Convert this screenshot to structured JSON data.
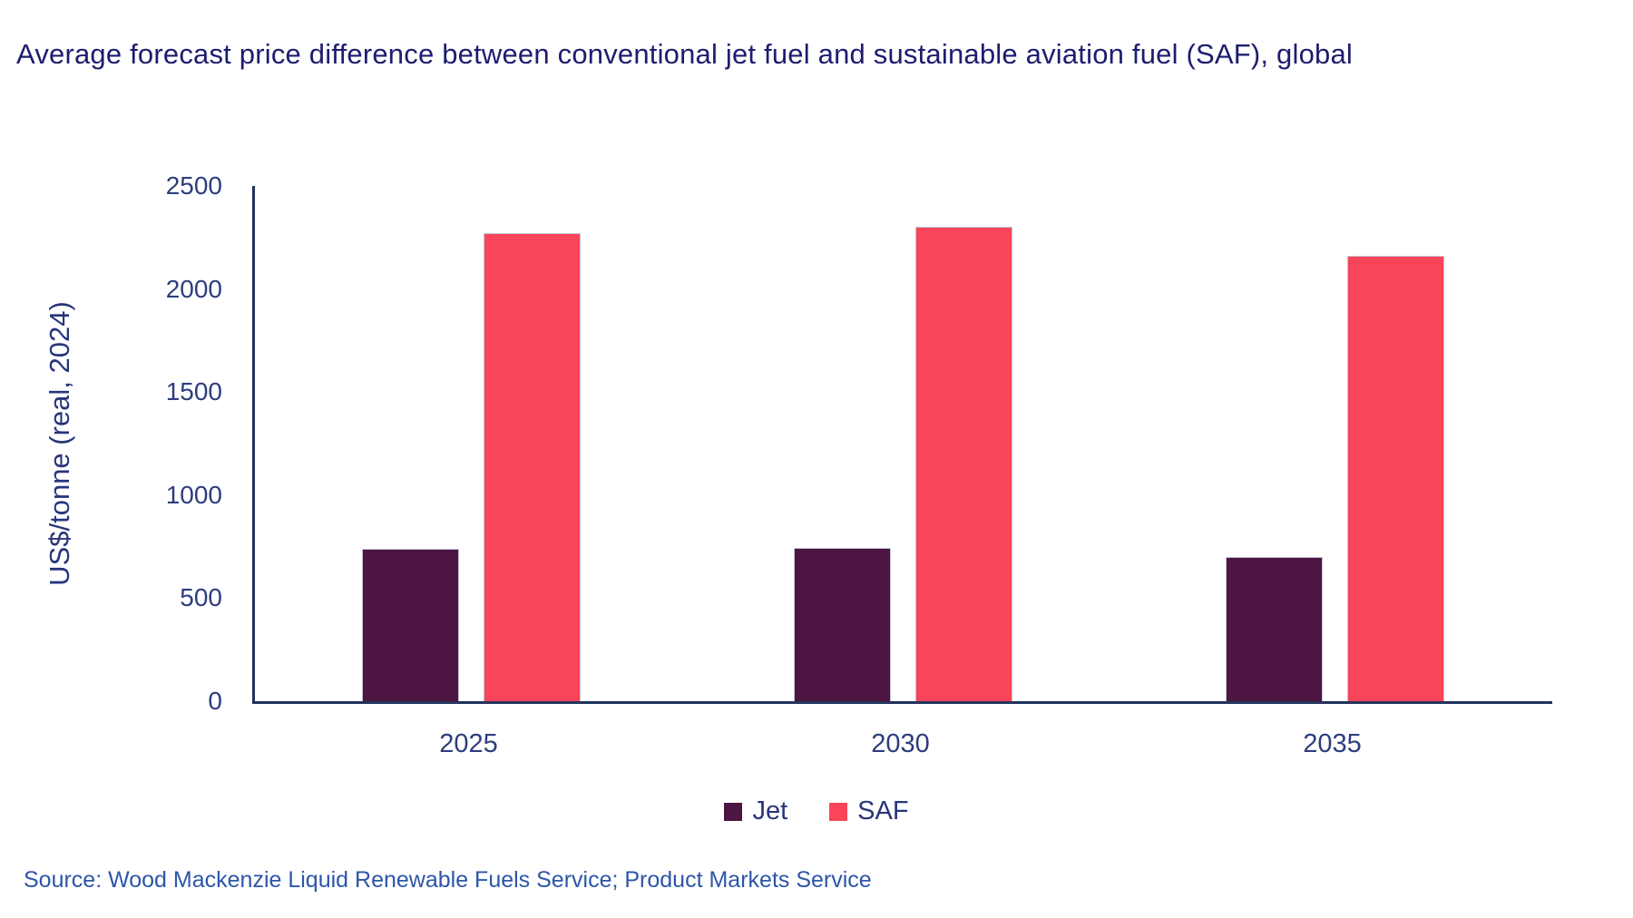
{
  "title": "Average forecast price difference between conventional jet fuel and sustainable aviation fuel (SAF), global",
  "source": "Source: Wood Mackenzie Liquid Renewable Fuels Service; Product Markets Service",
  "colors": {
    "jet": "#4d1541",
    "saf": "#f9455a",
    "axis": "#24335c",
    "title_text": "#1d1d70",
    "tick_text": "#2e3d7e",
    "source_text": "#2d56a8"
  },
  "chart_data": {
    "type": "bar",
    "title": "Average forecast price difference between conventional jet fuel and sustainable aviation fuel (SAF), global",
    "categories": [
      "2025",
      "2030",
      "2035"
    ],
    "series": [
      {
        "name": "Jet",
        "color": "#4d1541",
        "values": [
          740,
          745,
          700
        ]
      },
      {
        "name": "SAF",
        "color": "#f9455a",
        "values": [
          2270,
          2300,
          2160
        ]
      }
    ],
    "xlabel": "",
    "ylabel": "US$/tonne (real, 2024)",
    "ylim": [
      0,
      2500
    ],
    "yticks": [
      0,
      500,
      1000,
      1500,
      2000,
      2500
    ],
    "grid": false,
    "legend_position": "bottom"
  }
}
